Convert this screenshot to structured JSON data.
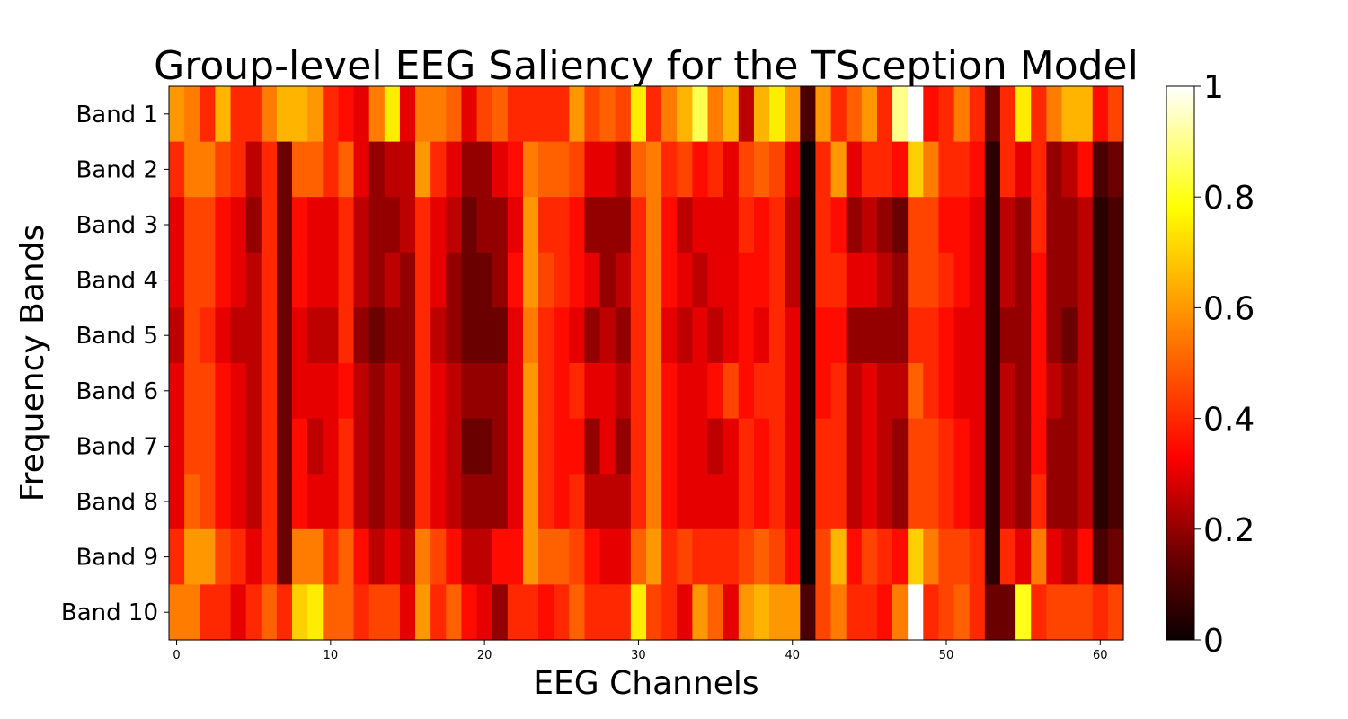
{
  "chart_data": {
    "type": "heatmap",
    "title": "Group-level EEG Saliency for the TSception Model",
    "xlabel": "EEG Channels",
    "ylabel": "Frequency Bands",
    "x_tick_labels": [
      "0",
      "10",
      "20",
      "30",
      "40",
      "50",
      "60"
    ],
    "x_tick_values": [
      0,
      10,
      20,
      30,
      40,
      50,
      60
    ],
    "xlim": [
      -0.5,
      61.5
    ],
    "rows": [
      "Band 1",
      "Band 2",
      "Band 3",
      "Band 4",
      "Band 5",
      "Band 6",
      "Band 7",
      "Band 8",
      "Band 9",
      "Band 10"
    ],
    "columns": 62,
    "colormap": "hot",
    "colorbar": {
      "range": [
        0,
        1
      ],
      "tick_values": [
        0,
        0.2,
        0.4,
        0.6,
        0.8,
        1
      ],
      "tick_labels": [
        "0",
        "0.2",
        "0.4",
        "0.6",
        "0.8",
        "1"
      ]
    },
    "values": [
      [
        0.6,
        0.55,
        0.4,
        0.65,
        0.4,
        0.4,
        0.55,
        0.65,
        0.65,
        0.6,
        0.4,
        0.35,
        0.3,
        0.55,
        0.75,
        0.3,
        0.55,
        0.55,
        0.5,
        0.3,
        0.45,
        0.5,
        0.4,
        0.4,
        0.4,
        0.4,
        0.6,
        0.45,
        0.5,
        0.45,
        0.75,
        0.4,
        0.55,
        0.65,
        0.85,
        0.55,
        0.65,
        0.25,
        0.65,
        0.75,
        0.6,
        0.1,
        0.6,
        0.4,
        0.5,
        0.6,
        0.4,
        0.9,
        1.0,
        0.35,
        0.4,
        0.55,
        0.4,
        0.15,
        0.4,
        0.75,
        0.4,
        0.55,
        0.65,
        0.65,
        0.35,
        0.45
      ],
      [
        0.4,
        0.55,
        0.55,
        0.45,
        0.4,
        0.25,
        0.4,
        0.15,
        0.5,
        0.5,
        0.4,
        0.5,
        0.3,
        0.2,
        0.25,
        0.25,
        0.6,
        0.4,
        0.3,
        0.2,
        0.2,
        0.3,
        0.35,
        0.55,
        0.5,
        0.5,
        0.45,
        0.3,
        0.3,
        0.25,
        0.5,
        0.55,
        0.4,
        0.45,
        0.35,
        0.4,
        0.3,
        0.45,
        0.5,
        0.45,
        0.3,
        0.0,
        0.4,
        0.6,
        0.3,
        0.4,
        0.4,
        0.35,
        0.7,
        0.55,
        0.4,
        0.4,
        0.35,
        0.05,
        0.4,
        0.3,
        0.4,
        0.2,
        0.25,
        0.35,
        0.1,
        0.15
      ],
      [
        0.3,
        0.45,
        0.45,
        0.35,
        0.3,
        0.2,
        0.4,
        0.15,
        0.35,
        0.3,
        0.3,
        0.4,
        0.25,
        0.2,
        0.2,
        0.25,
        0.4,
        0.3,
        0.25,
        0.15,
        0.2,
        0.2,
        0.3,
        0.6,
        0.4,
        0.4,
        0.35,
        0.2,
        0.2,
        0.2,
        0.4,
        0.55,
        0.35,
        0.25,
        0.3,
        0.3,
        0.3,
        0.4,
        0.35,
        0.4,
        0.25,
        0.0,
        0.4,
        0.35,
        0.2,
        0.25,
        0.2,
        0.15,
        0.45,
        0.45,
        0.35,
        0.35,
        0.3,
        0.05,
        0.25,
        0.2,
        0.4,
        0.2,
        0.2,
        0.25,
        0.05,
        0.1
      ],
      [
        0.3,
        0.45,
        0.45,
        0.35,
        0.3,
        0.25,
        0.4,
        0.15,
        0.35,
        0.3,
        0.3,
        0.4,
        0.25,
        0.2,
        0.25,
        0.2,
        0.4,
        0.3,
        0.2,
        0.15,
        0.15,
        0.2,
        0.35,
        0.6,
        0.45,
        0.4,
        0.35,
        0.3,
        0.2,
        0.25,
        0.4,
        0.55,
        0.35,
        0.3,
        0.25,
        0.3,
        0.3,
        0.35,
        0.35,
        0.4,
        0.25,
        0.0,
        0.4,
        0.4,
        0.3,
        0.3,
        0.25,
        0.2,
        0.45,
        0.45,
        0.4,
        0.35,
        0.3,
        0.05,
        0.25,
        0.2,
        0.35,
        0.2,
        0.2,
        0.25,
        0.05,
        0.1
      ],
      [
        0.25,
        0.45,
        0.4,
        0.3,
        0.25,
        0.25,
        0.4,
        0.15,
        0.3,
        0.25,
        0.25,
        0.4,
        0.2,
        0.15,
        0.2,
        0.2,
        0.4,
        0.25,
        0.2,
        0.15,
        0.15,
        0.15,
        0.3,
        0.55,
        0.4,
        0.35,
        0.3,
        0.2,
        0.25,
        0.2,
        0.4,
        0.55,
        0.3,
        0.25,
        0.3,
        0.25,
        0.3,
        0.35,
        0.3,
        0.4,
        0.3,
        0.0,
        0.35,
        0.35,
        0.2,
        0.2,
        0.2,
        0.2,
        0.4,
        0.4,
        0.35,
        0.3,
        0.3,
        0.05,
        0.2,
        0.2,
        0.35,
        0.2,
        0.15,
        0.25,
        0.05,
        0.1
      ],
      [
        0.3,
        0.45,
        0.45,
        0.35,
        0.3,
        0.25,
        0.4,
        0.15,
        0.3,
        0.3,
        0.3,
        0.35,
        0.25,
        0.2,
        0.25,
        0.2,
        0.4,
        0.3,
        0.25,
        0.2,
        0.2,
        0.2,
        0.3,
        0.6,
        0.4,
        0.35,
        0.4,
        0.3,
        0.3,
        0.25,
        0.4,
        0.55,
        0.35,
        0.3,
        0.3,
        0.35,
        0.45,
        0.35,
        0.4,
        0.4,
        0.3,
        0.0,
        0.35,
        0.4,
        0.25,
        0.3,
        0.25,
        0.25,
        0.5,
        0.4,
        0.35,
        0.3,
        0.3,
        0.05,
        0.25,
        0.2,
        0.35,
        0.25,
        0.2,
        0.25,
        0.05,
        0.1
      ],
      [
        0.3,
        0.45,
        0.45,
        0.35,
        0.3,
        0.25,
        0.4,
        0.15,
        0.35,
        0.25,
        0.3,
        0.4,
        0.25,
        0.2,
        0.25,
        0.2,
        0.4,
        0.3,
        0.25,
        0.15,
        0.15,
        0.2,
        0.3,
        0.6,
        0.4,
        0.35,
        0.35,
        0.2,
        0.3,
        0.2,
        0.4,
        0.55,
        0.35,
        0.3,
        0.3,
        0.25,
        0.3,
        0.4,
        0.35,
        0.4,
        0.3,
        0.0,
        0.4,
        0.4,
        0.25,
        0.3,
        0.25,
        0.2,
        0.45,
        0.45,
        0.4,
        0.35,
        0.3,
        0.05,
        0.25,
        0.2,
        0.35,
        0.2,
        0.2,
        0.25,
        0.05,
        0.1
      ],
      [
        0.3,
        0.5,
        0.45,
        0.35,
        0.3,
        0.25,
        0.4,
        0.15,
        0.35,
        0.3,
        0.3,
        0.4,
        0.25,
        0.2,
        0.25,
        0.2,
        0.4,
        0.3,
        0.25,
        0.2,
        0.2,
        0.2,
        0.3,
        0.6,
        0.4,
        0.35,
        0.4,
        0.25,
        0.25,
        0.25,
        0.4,
        0.55,
        0.35,
        0.3,
        0.3,
        0.3,
        0.3,
        0.4,
        0.35,
        0.4,
        0.3,
        0.0,
        0.4,
        0.4,
        0.25,
        0.3,
        0.25,
        0.2,
        0.45,
        0.45,
        0.4,
        0.35,
        0.3,
        0.05,
        0.25,
        0.2,
        0.4,
        0.2,
        0.2,
        0.25,
        0.05,
        0.1
      ],
      [
        0.4,
        0.6,
        0.6,
        0.45,
        0.4,
        0.3,
        0.4,
        0.15,
        0.55,
        0.55,
        0.4,
        0.5,
        0.35,
        0.25,
        0.3,
        0.25,
        0.55,
        0.45,
        0.35,
        0.25,
        0.25,
        0.35,
        0.35,
        0.6,
        0.5,
        0.5,
        0.45,
        0.35,
        0.3,
        0.3,
        0.5,
        0.6,
        0.4,
        0.45,
        0.4,
        0.4,
        0.4,
        0.45,
        0.5,
        0.45,
        0.35,
        0.0,
        0.45,
        0.65,
        0.35,
        0.45,
        0.4,
        0.35,
        0.7,
        0.55,
        0.45,
        0.45,
        0.4,
        0.05,
        0.4,
        0.3,
        0.55,
        0.3,
        0.25,
        0.35,
        0.1,
        0.15
      ],
      [
        0.55,
        0.55,
        0.4,
        0.4,
        0.3,
        0.4,
        0.5,
        0.4,
        0.7,
        0.75,
        0.5,
        0.5,
        0.4,
        0.45,
        0.45,
        0.3,
        0.6,
        0.4,
        0.5,
        0.35,
        0.3,
        0.2,
        0.4,
        0.4,
        0.35,
        0.4,
        0.5,
        0.4,
        0.4,
        0.4,
        0.75,
        0.45,
        0.4,
        0.3,
        0.6,
        0.5,
        0.3,
        0.6,
        0.65,
        0.6,
        0.6,
        0.1,
        0.45,
        0.55,
        0.4,
        0.4,
        0.35,
        0.55,
        1.0,
        0.4,
        0.45,
        0.5,
        0.4,
        0.15,
        0.15,
        0.8,
        0.4,
        0.45,
        0.45,
        0.45,
        0.4,
        0.45
      ]
    ]
  }
}
